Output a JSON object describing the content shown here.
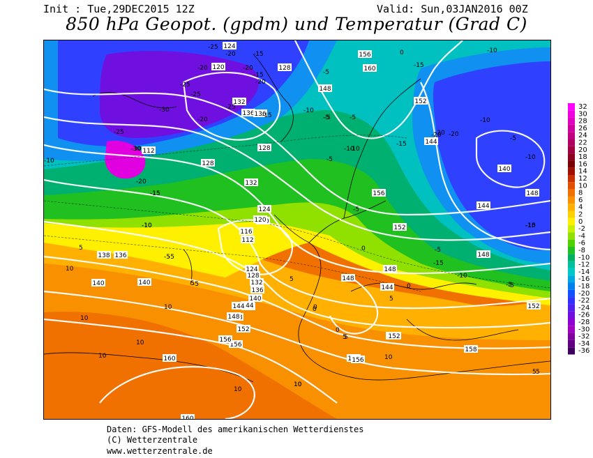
{
  "header": {
    "init": "Init : Tue,29DEC2015 12Z",
    "valid": "Valid: Sun,03JAN2016 00Z",
    "title": "850 hPa Geopot. (gpdm) und Temperatur (Grad C)"
  },
  "colorbar": {
    "ticks": [
      "32",
      "30",
      "28",
      "26",
      "24",
      "22",
      "20",
      "18",
      "16",
      "14",
      "12",
      "10",
      "8",
      "6",
      "4",
      "2",
      "0",
      "-2",
      "-4",
      "-6",
      "-8",
      "-10",
      "-12",
      "-14",
      "-16",
      "-18",
      "-20",
      "-22",
      "-24",
      "-26",
      "-28",
      "-30",
      "-32",
      "-34",
      "-36"
    ],
    "colors": [
      "#ff00ff",
      "#f000e0",
      "#e000c0",
      "#d000a0",
      "#c00080",
      "#b00060",
      "#a00040",
      "#8c0020",
      "#780000",
      "#a01000",
      "#c83000",
      "#e05000",
      "#f07000",
      "#f89000",
      "#ffb000",
      "#ffd000",
      "#fff000",
      "#c8f000",
      "#90e000",
      "#50d000",
      "#20c020",
      "#00b060",
      "#00c0a0",
      "#00c8c8",
      "#00a8e0",
      "#0080f0",
      "#1050ff",
      "#3030ff",
      "#5020f0",
      "#7010e0",
      "#9000d0",
      "#a000c0",
      "#8000a0",
      "#600080",
      "#400060"
    ]
  },
  "map": {
    "colors": {
      "magenta": "#e000e0",
      "violet": "#7010e0",
      "blue": "#3040ff",
      "lightblue": "#1090f0",
      "cyan": "#00c0c0",
      "teal": "#00b070",
      "green": "#20c020",
      "lightgreen": "#90e000",
      "yellow": "#fff000",
      "yelloworange": "#ffd000",
      "orange": "#ffb000",
      "deeporange": "#f89000",
      "redorange": "#f07000"
    },
    "geopotential_labels": [
      "124",
      "120",
      "128",
      "132",
      "136",
      "148",
      "156",
      "160",
      "152",
      "144",
      "140",
      "136",
      "132",
      "128",
      "124",
      "120",
      "116",
      "112",
      "160",
      "156",
      "152",
      "148",
      "144",
      "140",
      "136",
      "132",
      "128",
      "124",
      "120",
      "136",
      "140",
      "144",
      "148",
      "152",
      "156",
      "158",
      "160",
      "138",
      "112",
      "128",
      "148",
      "156",
      "152",
      "144",
      "148",
      "148",
      "148",
      "144",
      "156",
      "156",
      "152",
      "152",
      "144",
      "140"
    ],
    "temperature_labels": [
      "-25",
      "-20",
      "-15",
      "-20",
      "-25",
      "-20",
      "-15",
      "-25",
      "-25",
      "-20",
      "-30",
      "-20",
      "-15",
      "-30",
      "-25",
      "-20",
      "-15",
      "-10",
      "-10",
      "-5",
      "-5",
      "-5",
      "-10",
      "-5",
      "-10",
      "-15",
      "-20",
      "-15",
      "-10",
      "-5",
      "-5",
      "0",
      "-5",
      "-10",
      "-15",
      "-20",
      "-10",
      "-5",
      "-15",
      "-10",
      "-5",
      "0",
      "5",
      "10",
      "10",
      "5",
      "10",
      "10",
      "10",
      "5",
      "0",
      "0",
      "5",
      "10",
      "5",
      "10",
      "5",
      "0",
      "-5",
      "-10",
      "-15",
      "-10",
      "-5",
      "-5",
      "0",
      "5",
      "10",
      "5",
      "10",
      "-5",
      "-10",
      "-15",
      "-20",
      "-30"
    ]
  },
  "footer": {
    "line1": "Daten: GFS-Modell des amerikanischen Wetterdienstes",
    "line2": "(C) Wetterzentrale",
    "line3": "www.wetterzentrale.de"
  }
}
